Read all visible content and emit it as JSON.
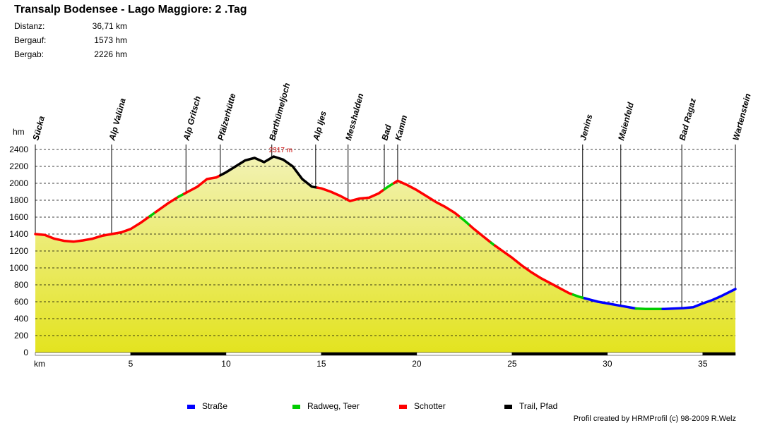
{
  "title": "Transalp Bodensee - Lago Maggiore: 2 .Tag",
  "stats": [
    {
      "label": "Distanz:",
      "value": "36,71 km"
    },
    {
      "label": "Bergauf:",
      "value": "1573 hm"
    },
    {
      "label": "Bergab:",
      "value": "2226 hm"
    }
  ],
  "credit": "Profil created by HRMProfil (c) 98-2009 R.Welz",
  "colors": {
    "strasse": "#0000ff",
    "radweg": "#00cc00",
    "schotter": "#ff0000",
    "trail": "#000000",
    "fill_top": "#f2f2b4",
    "fill_bottom": "#e3e31f"
  },
  "chart_data": {
    "type": "area",
    "title": "Transalp Bodensee - Lago Maggiore: 2 .Tag",
    "xlabel": "km",
    "ylabel": "hm",
    "xlim": [
      0,
      36.71
    ],
    "ylim": [
      0,
      2400
    ],
    "xticks": [
      5,
      10,
      15,
      20,
      25,
      30,
      35
    ],
    "yticks": [
      0,
      200,
      400,
      600,
      800,
      1000,
      1200,
      1400,
      1600,
      1800,
      2000,
      2200,
      2400
    ],
    "grid": true,
    "max_annotation": {
      "x": 12.5,
      "y": 2317,
      "label": "2317 m"
    },
    "profile": [
      [
        0,
        1400
      ],
      [
        0.5,
        1390
      ],
      [
        1,
        1345
      ],
      [
        1.5,
        1320
      ],
      [
        2,
        1310
      ],
      [
        2.5,
        1325
      ],
      [
        3,
        1345
      ],
      [
        3.5,
        1380
      ],
      [
        4,
        1400
      ],
      [
        4.5,
        1420
      ],
      [
        5,
        1460
      ],
      [
        5.5,
        1530
      ],
      [
        6,
        1610
      ],
      [
        6.5,
        1690
      ],
      [
        7,
        1770
      ],
      [
        7.5,
        1840
      ],
      [
        8,
        1900
      ],
      [
        8.5,
        1960
      ],
      [
        9,
        2050
      ],
      [
        9.5,
        2070
      ],
      [
        10,
        2130
      ],
      [
        10.5,
        2200
      ],
      [
        11,
        2270
      ],
      [
        11.5,
        2300
      ],
      [
        12,
        2250
      ],
      [
        12.5,
        2317
      ],
      [
        13,
        2280
      ],
      [
        13.5,
        2200
      ],
      [
        14,
        2050
      ],
      [
        14.5,
        1960
      ],
      [
        15,
        1940
      ],
      [
        15.5,
        1900
      ],
      [
        16,
        1850
      ],
      [
        16.5,
        1790
      ],
      [
        17,
        1820
      ],
      [
        17.5,
        1830
      ],
      [
        18,
        1880
      ],
      [
        18.5,
        1960
      ],
      [
        19,
        2030
      ],
      [
        19.5,
        1980
      ],
      [
        20,
        1920
      ],
      [
        20.5,
        1850
      ],
      [
        21,
        1780
      ],
      [
        21.5,
        1720
      ],
      [
        22,
        1650
      ],
      [
        22.5,
        1560
      ],
      [
        23,
        1460
      ],
      [
        23.5,
        1370
      ],
      [
        24,
        1280
      ],
      [
        24.5,
        1200
      ],
      [
        25,
        1120
      ],
      [
        25.5,
        1030
      ],
      [
        26,
        950
      ],
      [
        26.5,
        880
      ],
      [
        27,
        820
      ],
      [
        27.5,
        760
      ],
      [
        28,
        700
      ],
      [
        28.5,
        660
      ],
      [
        29,
        630
      ],
      [
        29.5,
        600
      ],
      [
        30,
        580
      ],
      [
        30.5,
        560
      ],
      [
        31,
        540
      ],
      [
        31.5,
        520
      ],
      [
        32,
        515
      ],
      [
        32.5,
        515
      ],
      [
        33,
        515
      ],
      [
        33.5,
        520
      ],
      [
        34,
        525
      ],
      [
        34.5,
        535
      ],
      [
        35,
        580
      ],
      [
        35.5,
        620
      ],
      [
        36,
        670
      ],
      [
        36.71,
        750
      ]
    ],
    "segments": [
      {
        "from": 0,
        "to": 6,
        "surface": "Schotter"
      },
      {
        "from": 6,
        "to": 6.3,
        "surface": "Radweg, Teer"
      },
      {
        "from": 6.3,
        "to": 7.5,
        "surface": "Schotter"
      },
      {
        "from": 7.5,
        "to": 7.8,
        "surface": "Radweg, Teer"
      },
      {
        "from": 7.8,
        "to": 9.7,
        "surface": "Schotter"
      },
      {
        "from": 9.7,
        "to": 14.8,
        "surface": "Trail, Pfad"
      },
      {
        "from": 14.8,
        "to": 18.3,
        "surface": "Schotter"
      },
      {
        "from": 18.3,
        "to": 18.8,
        "surface": "Radweg, Teer"
      },
      {
        "from": 18.8,
        "to": 22.3,
        "surface": "Schotter"
      },
      {
        "from": 22.3,
        "to": 22.8,
        "surface": "Radweg, Teer"
      },
      {
        "from": 22.8,
        "to": 23.9,
        "surface": "Schotter"
      },
      {
        "from": 23.9,
        "to": 24.1,
        "surface": "Radweg, Teer"
      },
      {
        "from": 24.1,
        "to": 28.2,
        "surface": "Schotter"
      },
      {
        "from": 28.2,
        "to": 28.8,
        "surface": "Radweg, Teer"
      },
      {
        "from": 28.8,
        "to": 31.5,
        "surface": "Straße"
      },
      {
        "from": 31.5,
        "to": 32.9,
        "surface": "Radweg, Teer"
      },
      {
        "from": 32.9,
        "to": 36.71,
        "surface": "Straße"
      }
    ],
    "waypoints": [
      {
        "name": "Sücka",
        "x": 0.0
      },
      {
        "name": "Alp Valüna",
        "x": 4.0
      },
      {
        "name": "Alp Gritsch",
        "x": 7.9
      },
      {
        "name": "Pfälzerhütte",
        "x": 9.7
      },
      {
        "name": "Barthümeljoch",
        "x": 12.4
      },
      {
        "name": "Alp Ijes",
        "x": 14.7
      },
      {
        "name": "Messhalden",
        "x": 16.4
      },
      {
        "name": "Bad",
        "x": 18.3
      },
      {
        "name": "Kamm",
        "x": 19.0
      },
      {
        "name": "Jenins",
        "x": 28.7
      },
      {
        "name": "Maienfeld",
        "x": 30.7
      },
      {
        "name": "Bad Ragaz",
        "x": 33.9
      },
      {
        "name": "Wartenstein",
        "x": 36.71
      }
    ],
    "legend": [
      {
        "label": "Straße",
        "key": "strasse"
      },
      {
        "label": "Radweg, Teer",
        "key": "radweg"
      },
      {
        "label": "Schotter",
        "key": "schotter"
      },
      {
        "label": "Trail, Pfad",
        "key": "trail"
      }
    ]
  }
}
